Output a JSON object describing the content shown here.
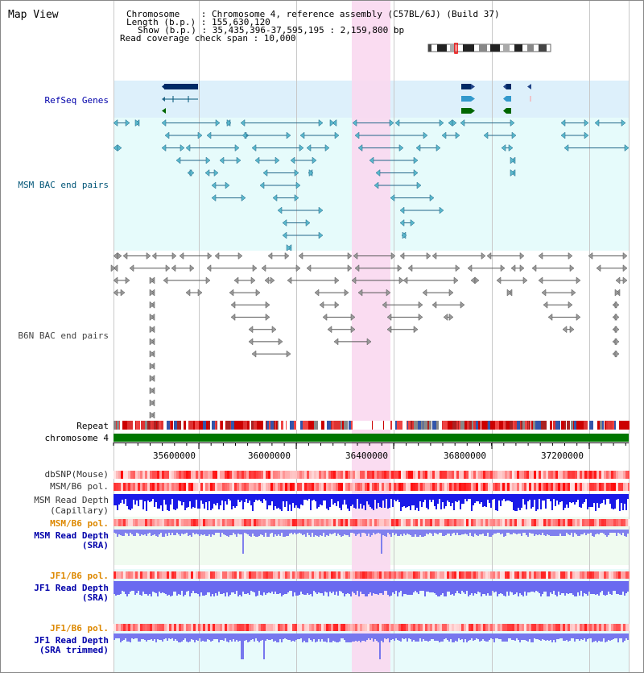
{
  "title": "Map View",
  "info": {
    "line1": "Chromosome    : Chromosome 4, reference assembly (C57BL/6J) (Build 37)",
    "line2": "Length (b.p.) : 155,630,120",
    "line3": "Show (b.p.) : 35,435,396-37,595,195 : 2,159,800 bp",
    "line4": "Read coverage check span : 10,000"
  },
  "tracks": {
    "refseq": "RefSeq Genes",
    "msm_bac": "MSM BAC end pairs",
    "b6n_bac": "B6N BAC end pairs",
    "repeat": "Repeat",
    "chromosome": "chromosome 4",
    "dbsnp": "dbSNP(Mouse)",
    "msm_b6_pol_a": "MSM/B6 pol.",
    "msm_read_depth_cap_1": "MSM Read Depth",
    "msm_read_depth_cap_2": "(Capillary)",
    "msm_b6_pol_b": "MSM/B6 pol.",
    "msm_read_depth_sra_1": "MSM Read Depth",
    "msm_read_depth_sra_2": "(SRA)",
    "jf1_b6_pol_a": "JF1/B6 pol.",
    "jf1_read_depth_sra_1": "JF1 Read Depth",
    "jf1_read_depth_sra_2": "(SRA)",
    "jf1_b6_pol_b": "JF1/B6 pol.",
    "jf1_read_depth_trim_1": "JF1 Read Depth",
    "jf1_read_depth_trim_2": "(SRA trimmed)"
  },
  "axis_ticks": [
    "35600000",
    "36000000",
    "36400000",
    "36800000",
    "37200000"
  ],
  "colors": {
    "label_black": "#000000",
    "label_blue": "#0000aa",
    "label_teal": "#005577",
    "label_orange": "#dd8800",
    "refseq_bg": "#ddf0fb",
    "bac_bg": "#e6fbfb",
    "highlight": "#f9d8ef",
    "depth_blue": "#2020e0",
    "depth_light": "#7f7ff0",
    "chrom_green": "#007700"
  }
}
